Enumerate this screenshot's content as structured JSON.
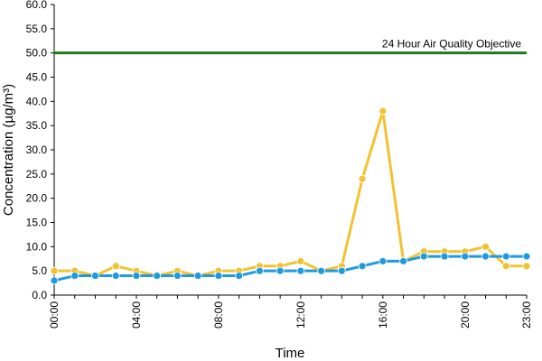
{
  "chart_data": {
    "type": "line",
    "title": "",
    "xlabel": "Time",
    "ylabel": "Concentration (µg/m³)",
    "x": [
      0,
      1,
      2,
      3,
      4,
      5,
      6,
      7,
      8,
      9,
      10,
      11,
      12,
      13,
      14,
      15,
      16,
      17,
      18,
      19,
      20,
      21,
      22,
      23
    ],
    "xlim": [
      0,
      23
    ],
    "ylim": [
      0,
      60
    ],
    "y_ticks": [
      "0.0",
      "5.0",
      "10.0",
      "15.0",
      "20.0",
      "25.0",
      "30.0",
      "35.0",
      "40.0",
      "45.0",
      "50.0",
      "55.0",
      "60.0"
    ],
    "x_ticks": [
      {
        "x": 0,
        "label": "00:00"
      },
      {
        "x": 4,
        "label": "04:00"
      },
      {
        "x": 8,
        "label": "08:00"
      },
      {
        "x": 12,
        "label": "12:00"
      },
      {
        "x": 16,
        "label": "16:00"
      },
      {
        "x": 20,
        "label": "20:00"
      },
      {
        "x": 23,
        "label": "23:00"
      }
    ],
    "grid": false,
    "legend": "none",
    "series": [
      {
        "color": "#F2C230",
        "marker_color": "#F2C230",
        "values": [
          5,
          5,
          4,
          6,
          5,
          4,
          5,
          4,
          5,
          5,
          6,
          6,
          7,
          5,
          6,
          24,
          38,
          7,
          9,
          9,
          9,
          10,
          6,
          6
        ]
      },
      {
        "color": "#1E9BE0",
        "marker_color": "#1E9BE0",
        "values": [
          3,
          4,
          4,
          4,
          4,
          4,
          4,
          4,
          4,
          4,
          5,
          5,
          5,
          5,
          5,
          6,
          7,
          7,
          8,
          8,
          8,
          8,
          8,
          8
        ]
      }
    ],
    "reference_line": {
      "value": 50,
      "label": "24 Hour Air Quality Objective",
      "color": "#1E7A1E"
    }
  }
}
